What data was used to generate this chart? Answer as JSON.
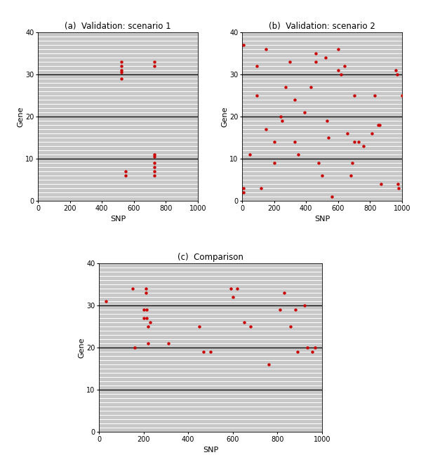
{
  "title_a": "(a)  Validation: scenario 1",
  "title_b": "(b)  Validation: scenario 2",
  "title_c": "(c)  Comparison",
  "xlabel": "SNP",
  "ylabel": "Gene",
  "xlim": [
    0,
    1000
  ],
  "ylim": [
    0,
    40
  ],
  "xticks": [
    0,
    200,
    400,
    600,
    800,
    1000
  ],
  "yticks": [
    0,
    10,
    20,
    30,
    40
  ],
  "dot_color": "#CC0000",
  "bg_color": "#C8C8C8",
  "white_line_color": "#FFFFFF",
  "block_line_color": "#000000",
  "scenario1_points": [
    [
      520,
      33
    ],
    [
      520,
      32
    ],
    [
      520,
      31
    ],
    [
      520,
      30.5
    ],
    [
      520,
      29
    ],
    [
      730,
      33
    ],
    [
      730,
      32
    ],
    [
      550,
      7
    ],
    [
      550,
      6
    ],
    [
      730,
      11
    ],
    [
      730,
      10.5
    ],
    [
      730,
      9
    ],
    [
      730,
      8
    ],
    [
      730,
      7
    ],
    [
      730,
      6
    ]
  ],
  "scenario2_points": [
    [
      10,
      37
    ],
    [
      10,
      3
    ],
    [
      10,
      2
    ],
    [
      50,
      11
    ],
    [
      90,
      32
    ],
    [
      90,
      25
    ],
    [
      120,
      3
    ],
    [
      150,
      36
    ],
    [
      150,
      17
    ],
    [
      200,
      14
    ],
    [
      200,
      9
    ],
    [
      240,
      20
    ],
    [
      250,
      19
    ],
    [
      270,
      27
    ],
    [
      300,
      33
    ],
    [
      330,
      24
    ],
    [
      330,
      14
    ],
    [
      350,
      11
    ],
    [
      390,
      21
    ],
    [
      430,
      27
    ],
    [
      460,
      35
    ],
    [
      460,
      33
    ],
    [
      480,
      9
    ],
    [
      500,
      6
    ],
    [
      520,
      34
    ],
    [
      530,
      19
    ],
    [
      540,
      15
    ],
    [
      560,
      1
    ],
    [
      600,
      36
    ],
    [
      600,
      31
    ],
    [
      620,
      30
    ],
    [
      640,
      32
    ],
    [
      660,
      16
    ],
    [
      690,
      9
    ],
    [
      680,
      6
    ],
    [
      700,
      25
    ],
    [
      700,
      14
    ],
    [
      730,
      14
    ],
    [
      760,
      13
    ],
    [
      810,
      16
    ],
    [
      830,
      25
    ],
    [
      850,
      18
    ],
    [
      860,
      18
    ],
    [
      870,
      4
    ],
    [
      960,
      31
    ],
    [
      970,
      30
    ],
    [
      975,
      4
    ],
    [
      980,
      3
    ],
    [
      1000,
      25
    ]
  ],
  "comparison_points": [
    [
      30,
      31
    ],
    [
      150,
      34
    ],
    [
      160,
      20
    ],
    [
      200,
      29
    ],
    [
      200,
      27
    ],
    [
      210,
      34
    ],
    [
      210,
      33
    ],
    [
      215,
      29
    ],
    [
      215,
      27
    ],
    [
      220,
      25
    ],
    [
      220,
      21
    ],
    [
      230,
      26
    ],
    [
      310,
      21
    ],
    [
      450,
      25
    ],
    [
      470,
      19
    ],
    [
      500,
      19
    ],
    [
      590,
      34
    ],
    [
      600,
      32
    ],
    [
      620,
      34
    ],
    [
      650,
      26
    ],
    [
      680,
      25
    ],
    [
      760,
      16
    ],
    [
      810,
      29
    ],
    [
      830,
      33
    ],
    [
      860,
      25
    ],
    [
      880,
      29
    ],
    [
      890,
      19
    ],
    [
      920,
      30
    ],
    [
      935,
      20
    ],
    [
      955,
      19
    ],
    [
      970,
      20
    ]
  ]
}
